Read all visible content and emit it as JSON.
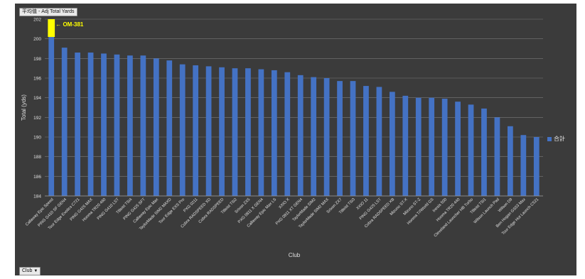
{
  "pivot": {
    "title_button": "平均值 - Adj Total Yards",
    "axis_button": "Club"
  },
  "chart_data": {
    "type": "bar",
    "xlabel": "Club",
    "ylabel": "Total (yds)",
    "ylim": [
      184,
      202
    ],
    "yticks": [
      184,
      186,
      188,
      190,
      192,
      194,
      196,
      198,
      200,
      202
    ],
    "grid": true,
    "legend_position": "right",
    "annotation": "← OM-381",
    "highlight_color": "#ffff00",
    "bar_color": "#4472c4",
    "categories": [
      "Callaway Epic Speed",
      "PING G410 SF GEN4",
      "Tour Edge Exotics C721",
      "PING G425 MAX",
      "Honma TR20 460",
      "PING G410 LST",
      "Titleist TSi4",
      "PING G425 SFT",
      "Callaway Epic Max",
      "TaylorMade SIM2 MAXD",
      "Tour Edge EXS Pro",
      "PXG 0211",
      "Cobra RADSPEED XD",
      "Cobra RADSPEED",
      "Titleist TSi2",
      "Srixon ZX5",
      "PXG 0811 X GEN4",
      "Callaway Epic Max LS",
      "XXIO X",
      "PXG 0811 XT GEN4",
      "TaylorMade SIM2",
      "TaylorMade SIM2 MAX",
      "Srixon ZX7",
      "Titleist TSi3",
      "XXIO 11",
      "PING G425 LST",
      "Cobra RADSPEED XB",
      "Mizuno ST-X",
      "Mizuno ST-Z",
      "Honma T//World GS",
      "Inesis 500",
      "Honma TR20 440",
      "Cleveland Launcher HB Turbo",
      "Titleist TSi1",
      "Wilson Launch Pad",
      "Wilson D9",
      "Ben Hogan GS53 Max",
      "Tour Edge Hot Launch C521"
    ],
    "series": [
      {
        "name": "合計",
        "values": [
          201.2,
          199.1,
          198.6,
          198.6,
          198.5,
          198.4,
          198.3,
          198.3,
          198.0,
          197.8,
          197.4,
          197.3,
          197.2,
          197.1,
          197.0,
          197.0,
          196.9,
          196.8,
          196.6,
          196.3,
          196.1,
          196.0,
          195.7,
          195.7,
          195.2,
          195.1,
          194.6,
          194.2,
          194.0,
          194.0,
          193.9,
          193.6,
          193.3,
          192.9,
          192.0,
          191.1,
          190.2,
          190.0
        ]
      }
    ]
  }
}
